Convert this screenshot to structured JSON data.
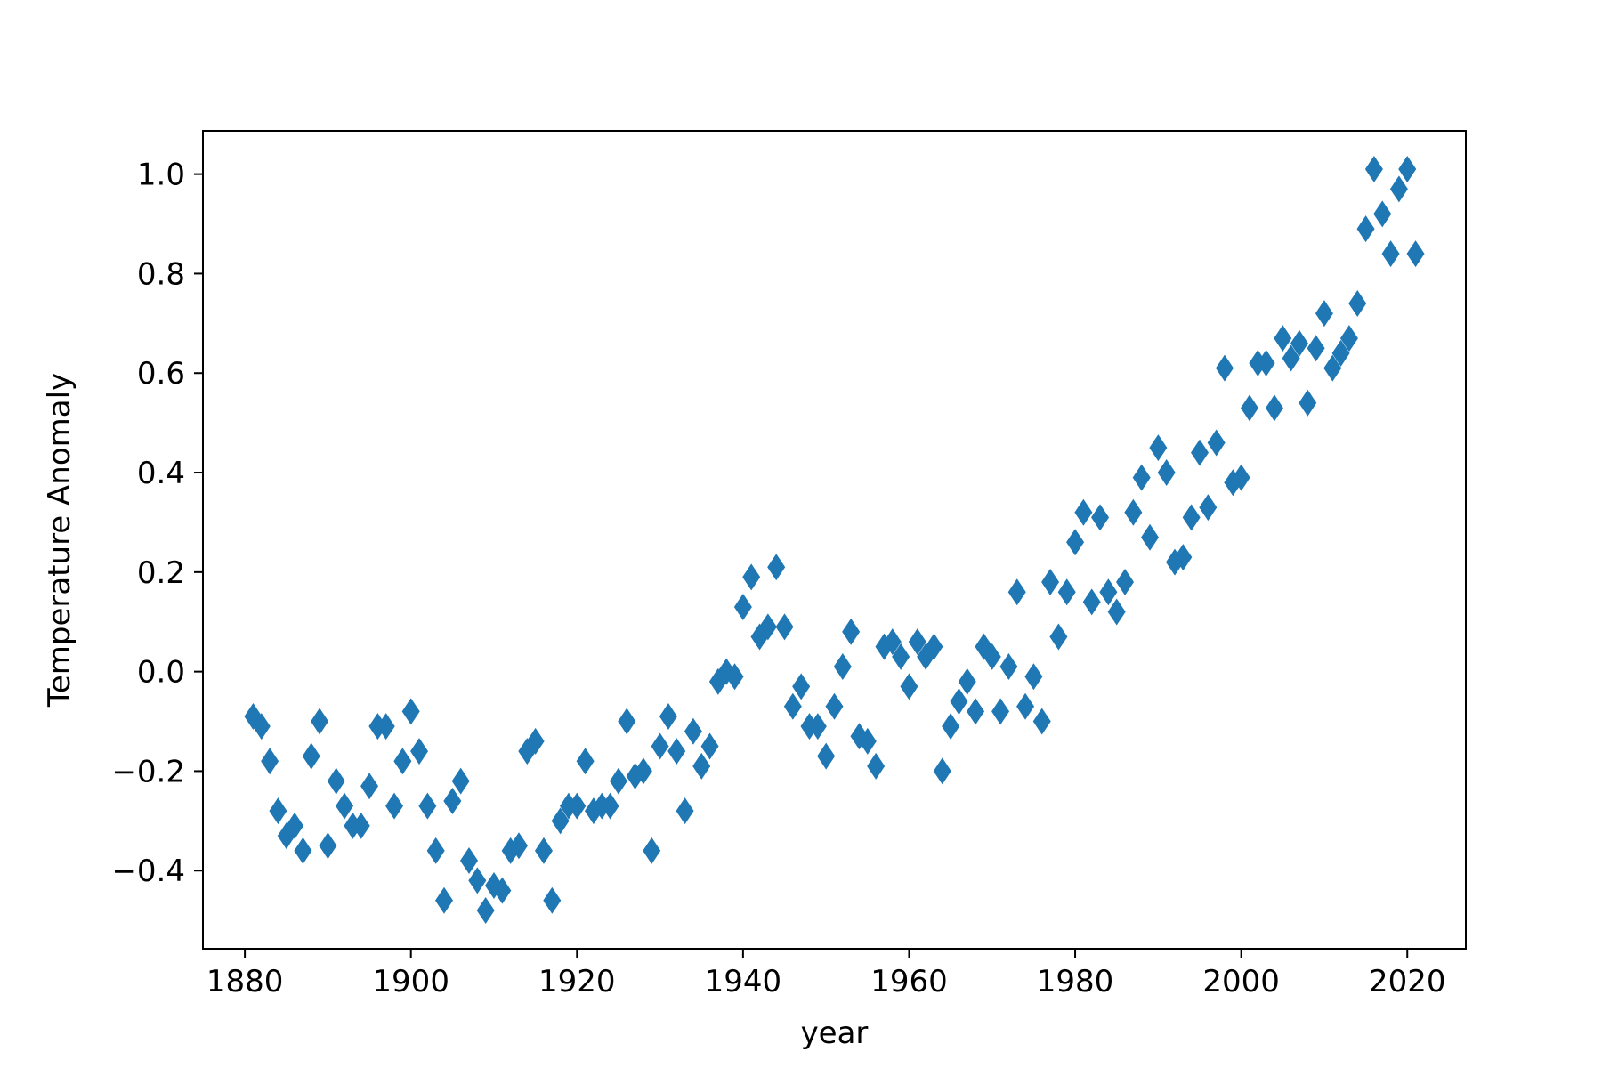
{
  "chart_data": {
    "type": "scatter",
    "title": "",
    "xlabel": "year",
    "ylabel": "Temperature Anomaly",
    "xlim": [
      1874.95,
      2027.05
    ],
    "ylim": [
      -0.557,
      1.087
    ],
    "xticks": [
      1880,
      1900,
      1920,
      1940,
      1960,
      1980,
      2000,
      2020
    ],
    "yticks": [
      -0.4,
      -0.2,
      0.0,
      0.2,
      0.4,
      0.6,
      0.8,
      1.0
    ],
    "ytick_labels": [
      "−0.4",
      "−0.2",
      "0.0",
      "0.2",
      "0.4",
      "0.6",
      "0.8",
      "1.0"
    ],
    "marker": "diamond",
    "grid": false,
    "color": "#1f77b4",
    "x": [
      1881,
      1882,
      1883,
      1884,
      1885,
      1886,
      1887,
      1888,
      1889,
      1890,
      1891,
      1892,
      1893,
      1894,
      1895,
      1896,
      1897,
      1898,
      1899,
      1900,
      1901,
      1902,
      1903,
      1904,
      1905,
      1906,
      1907,
      1908,
      1909,
      1910,
      1911,
      1912,
      1913,
      1914,
      1915,
      1916,
      1917,
      1918,
      1919,
      1920,
      1921,
      1922,
      1923,
      1924,
      1925,
      1926,
      1927,
      1928,
      1929,
      1930,
      1931,
      1932,
      1933,
      1934,
      1935,
      1936,
      1937,
      1938,
      1939,
      1940,
      1941,
      1942,
      1943,
      1944,
      1945,
      1946,
      1947,
      1948,
      1949,
      1950,
      1951,
      1952,
      1953,
      1954,
      1955,
      1956,
      1957,
      1958,
      1959,
      1960,
      1961,
      1962,
      1963,
      1964,
      1965,
      1966,
      1967,
      1968,
      1969,
      1970,
      1971,
      1972,
      1973,
      1974,
      1975,
      1976,
      1977,
      1978,
      1979,
      1980,
      1981,
      1982,
      1983,
      1984,
      1985,
      1986,
      1987,
      1988,
      1989,
      1990,
      1991,
      1992,
      1993,
      1994,
      1995,
      1996,
      1997,
      1998,
      1999,
      2000,
      2001,
      2002,
      2003,
      2004,
      2005,
      2006,
      2007,
      2008,
      2009,
      2010,
      2011,
      2012,
      2013,
      2014,
      2015,
      2016,
      2017,
      2018,
      2019,
      2020,
      2021
    ],
    "y": [
      -0.09,
      -0.11,
      -0.18,
      -0.28,
      -0.33,
      -0.31,
      -0.36,
      -0.17,
      -0.1,
      -0.35,
      -0.22,
      -0.27,
      -0.31,
      -0.31,
      -0.23,
      -0.11,
      -0.11,
      -0.27,
      -0.18,
      -0.08,
      -0.16,
      -0.27,
      -0.36,
      -0.46,
      -0.26,
      -0.22,
      -0.38,
      -0.42,
      -0.48,
      -0.43,
      -0.44,
      -0.36,
      -0.35,
      -0.16,
      -0.14,
      -0.36,
      -0.46,
      -0.3,
      -0.27,
      -0.27,
      -0.18,
      -0.28,
      -0.27,
      -0.27,
      -0.22,
      -0.1,
      -0.21,
      -0.2,
      -0.36,
      -0.15,
      -0.09,
      -0.16,
      -0.28,
      -0.12,
      -0.19,
      -0.15,
      -0.02,
      0.0,
      -0.01,
      0.13,
      0.19,
      0.07,
      0.09,
      0.21,
      0.09,
      -0.07,
      -0.03,
      -0.11,
      -0.11,
      -0.17,
      -0.07,
      0.01,
      0.08,
      -0.13,
      -0.14,
      -0.19,
      0.05,
      0.06,
      0.03,
      -0.03,
      0.06,
      0.03,
      0.05,
      -0.2,
      -0.11,
      -0.06,
      -0.02,
      -0.08,
      0.05,
      0.03,
      -0.08,
      0.01,
      0.16,
      -0.07,
      -0.01,
      -0.1,
      0.18,
      0.07,
      0.16,
      0.26,
      0.32,
      0.14,
      0.31,
      0.16,
      0.12,
      0.18,
      0.32,
      0.39,
      0.27,
      0.45,
      0.4,
      0.22,
      0.23,
      0.31,
      0.44,
      0.33,
      0.46,
      0.61,
      0.38,
      0.39,
      0.53,
      0.62,
      0.62,
      0.53,
      0.67,
      0.63,
      0.66,
      0.54,
      0.65,
      0.72,
      0.61,
      0.64,
      0.67,
      0.74,
      0.89,
      1.01,
      0.92,
      0.84,
      0.97,
      1.01,
      0.84
    ]
  }
}
